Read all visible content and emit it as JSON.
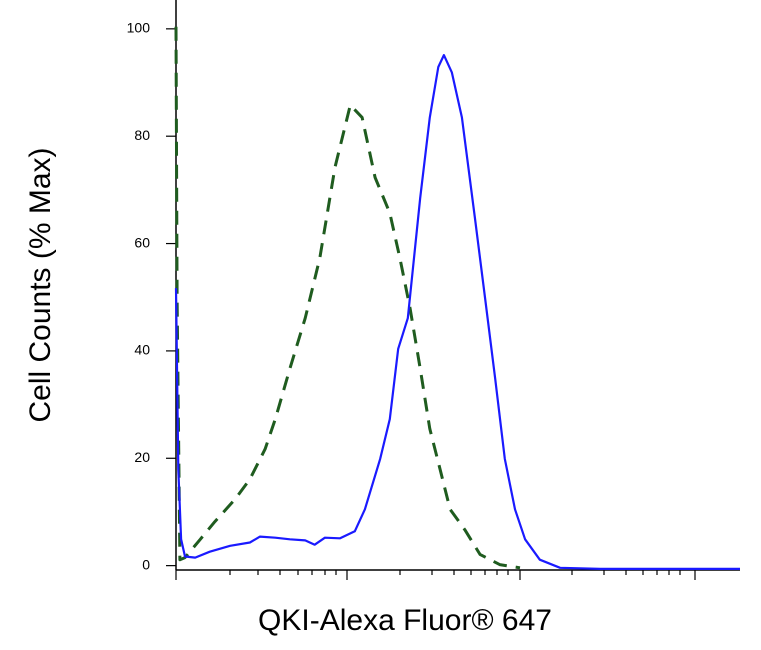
{
  "chart_data": {
    "type": "line",
    "ylabel": "Cell Counts (% Max)",
    "xlabel": "QKI-Alexa Fluor® 647",
    "xlim": [
      0,
      100
    ],
    "ylim": [
      -1,
      105
    ],
    "yticks": [
      0,
      20,
      40,
      60,
      80,
      100
    ],
    "series": [
      {
        "color": "#1f5c1f",
        "style": "dashed",
        "x": [
          0,
          0.2,
          0.7,
          1.6,
          4.3,
          6.9,
          10.5,
          13.1,
          15.8,
          17.6,
          20.2,
          22.9,
          25.5,
          28.2,
          30.9,
          33.0,
          35.3,
          37.9,
          39.7,
          41.5,
          43.3,
          45.0,
          46.8,
          48.6,
          51.2,
          53.9,
          57.4,
          61.0
        ],
        "values": [
          100.4,
          49.8,
          1.1,
          1.5,
          4.9,
          8.2,
          12.4,
          16.1,
          21.7,
          27.3,
          36.7,
          46.1,
          57.3,
          74.2,
          85.8,
          83.5,
          72.3,
          65.7,
          57.3,
          47.9,
          36.7,
          25.5,
          18.0,
          10.5,
          6.7,
          2.1,
          0.2,
          -0.4
        ]
      },
      {
        "color": "#1a1aff",
        "style": "solid",
        "x": [
          0,
          0.4,
          0.9,
          1.6,
          3.4,
          6.0,
          9.6,
          13.1,
          14.9,
          17.6,
          20.2,
          22.9,
          24.6,
          26.4,
          29.1,
          31.7,
          33.5,
          36.2,
          37.9,
          39.4,
          41.1,
          43.3,
          45.0,
          46.5,
          47.5,
          48.9,
          50.7,
          53.0,
          54.8,
          56.6,
          58.3,
          60.1,
          61.9,
          64.5,
          68.1,
          75.2,
          100
        ],
        "values": [
          51.7,
          18.0,
          4.9,
          1.7,
          1.5,
          2.6,
          3.7,
          4.3,
          5.4,
          5.2,
          4.9,
          4.7,
          3.9,
          5.2,
          5.1,
          6.4,
          10.5,
          19.9,
          27.3,
          40.4,
          46.1,
          68.5,
          83.5,
          92.9,
          95.1,
          91.9,
          83.5,
          64.8,
          49.8,
          34.8,
          19.9,
          10.5,
          4.9,
          1.1,
          -0.4,
          -0.6,
          -0.6
        ]
      }
    ]
  }
}
